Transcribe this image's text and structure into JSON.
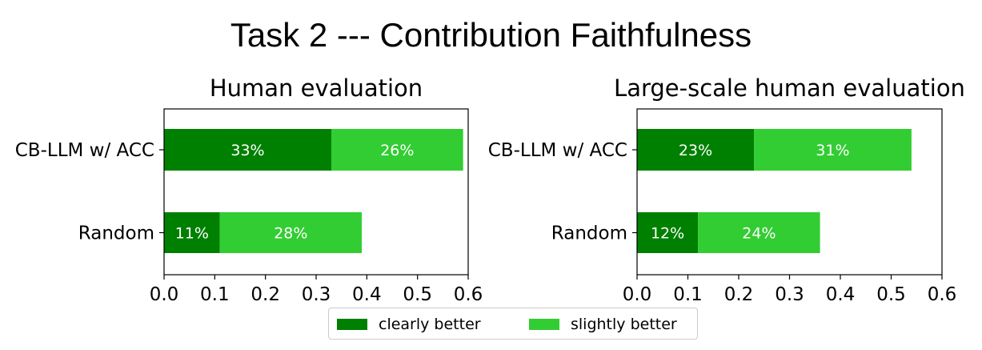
{
  "title": "Task 2 --- Contribution Faithfulness",
  "colors": {
    "clearly_better": "#008000",
    "slightly_better": "#32cd32"
  },
  "chart_data": [
    {
      "type": "bar",
      "orientation": "horizontal",
      "stacked": true,
      "title": "Human evaluation",
      "categories": [
        "CB-LLM w/ ACC",
        "Random"
      ],
      "series": [
        {
          "name": "clearly better",
          "values": [
            0.33,
            0.11
          ],
          "labels": [
            "33%",
            "11%"
          ]
        },
        {
          "name": "slightly better",
          "values": [
            0.26,
            0.28
          ],
          "labels": [
            "26%",
            "28%"
          ]
        }
      ],
      "xlim": [
        0.0,
        0.6
      ],
      "xticks": [
        "0.0",
        "0.1",
        "0.2",
        "0.3",
        "0.4",
        "0.5",
        "0.6"
      ],
      "xlabel": "",
      "ylabel": ""
    },
    {
      "type": "bar",
      "orientation": "horizontal",
      "stacked": true,
      "title": "Large-scale human evaluation",
      "categories": [
        "CB-LLM w/ ACC",
        "Random"
      ],
      "series": [
        {
          "name": "clearly better",
          "values": [
            0.23,
            0.12
          ],
          "labels": [
            "23%",
            "12%"
          ]
        },
        {
          "name": "slightly better",
          "values": [
            0.31,
            0.24
          ],
          "labels": [
            "31%",
            "24%"
          ]
        }
      ],
      "xlim": [
        0.0,
        0.6
      ],
      "xticks": [
        "0.0",
        "0.1",
        "0.2",
        "0.3",
        "0.4",
        "0.5",
        "0.6"
      ],
      "xlabel": "",
      "ylabel": ""
    }
  ],
  "legend": [
    {
      "label": "clearly better"
    },
    {
      "label": "slightly better"
    }
  ]
}
